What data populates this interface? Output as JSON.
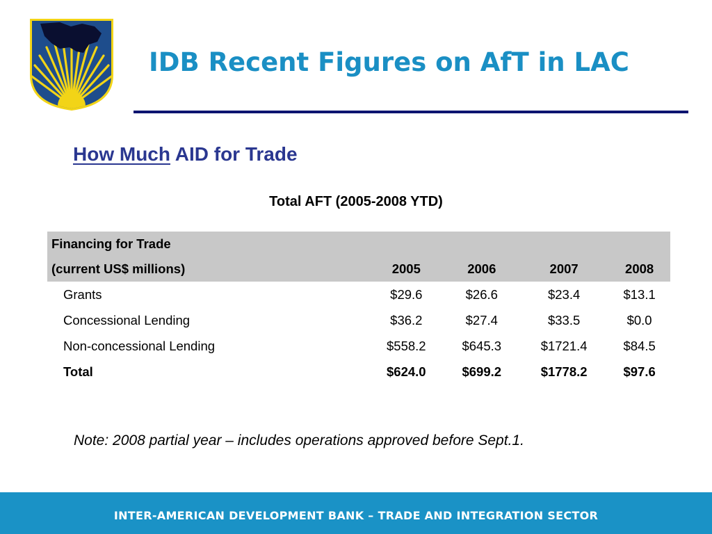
{
  "header": {
    "title": "IDB Recent Figures on AfT in LAC"
  },
  "section": {
    "title_lead": "How Much",
    "title_rest": " AID for Trade"
  },
  "table": {
    "title": "Total AFT (2005-2008 YTD)",
    "header_line1": "Financing for Trade",
    "header_line2": "(current US$ millions)",
    "years": [
      "2005",
      "2006",
      "2007",
      "2008"
    ],
    "rows": [
      {
        "label": "Grants",
        "values": [
          "$29.6",
          "$26.6",
          "$23.4",
          "$13.1"
        ]
      },
      {
        "label": "Concessional Lending",
        "values": [
          "$36.2",
          "$27.4",
          "$33.5",
          "$0.0"
        ]
      },
      {
        "label": "Non-concessional Lending",
        "values": [
          "$558.2",
          "$645.3",
          "$1721.4",
          "$84.5"
        ]
      },
      {
        "label": "Total",
        "values": [
          "$624.0",
          "$699.2",
          "$1778.2",
          "$97.6"
        ]
      }
    ]
  },
  "note": "Note: 2008 partial year – includes operations approved before Sept.1.",
  "footer": {
    "text": "INTER-AMERICAN DEVELOPMENT BANK – TRADE AND INTEGRATION SECTOR"
  },
  "logo": {
    "icon": "idb-shield-logo-icon",
    "colors": {
      "shield": "#1e4d8c",
      "sun": "#f2d417",
      "continent": "#0a0f30",
      "border": "#f2d417"
    }
  }
}
